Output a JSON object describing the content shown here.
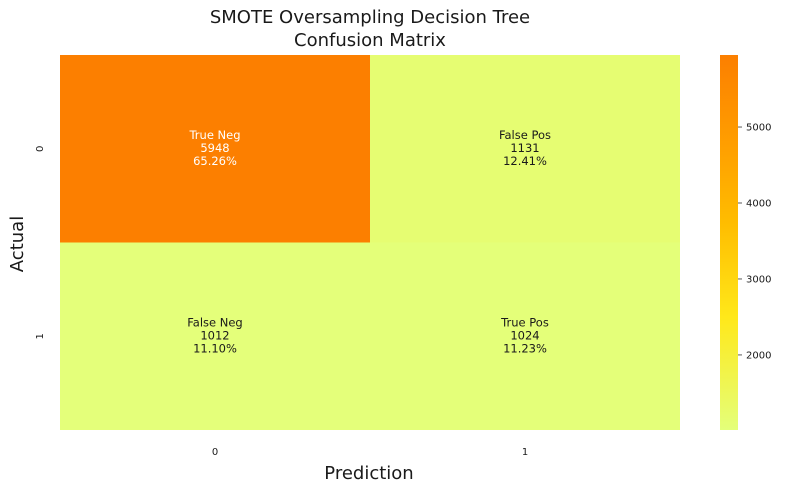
{
  "chart_data": {
    "type": "heatmap",
    "title": [
      "SMOTE Oversampling Decision Tree",
      "Confusion Matrix"
    ],
    "xlabel": "Prediction",
    "ylabel": "Actual",
    "x_categories": [
      "0",
      "1"
    ],
    "y_categories": [
      "0",
      "1"
    ],
    "cells": [
      {
        "row": 0,
        "col": 0,
        "name": "True Neg",
        "count": "5948",
        "percent": "65.26%",
        "value": 5948
      },
      {
        "row": 0,
        "col": 1,
        "name": "False Pos",
        "count": "1131",
        "percent": "12.41%",
        "value": 1131
      },
      {
        "row": 1,
        "col": 0,
        "name": "False Neg",
        "count": "1012",
        "percent": "11.10%",
        "value": 1012
      },
      {
        "row": 1,
        "col": 1,
        "name": "True Pos",
        "count": "1024",
        "percent": "11.23%",
        "value": 1024
      }
    ],
    "colorbar": {
      "colormap": "Wistia",
      "vmin": 1012,
      "vmax": 5948,
      "ticks": [
        "2000",
        "3000",
        "4000",
        "5000"
      ],
      "tick_values": [
        2000,
        3000,
        4000,
        5000
      ]
    },
    "colors": {
      "low": "#e4ff7a",
      "mid1": "#ffe81a",
      "mid2": "#ffbd00",
      "mid3": "#ffa000",
      "high": "#fc7f00"
    }
  }
}
